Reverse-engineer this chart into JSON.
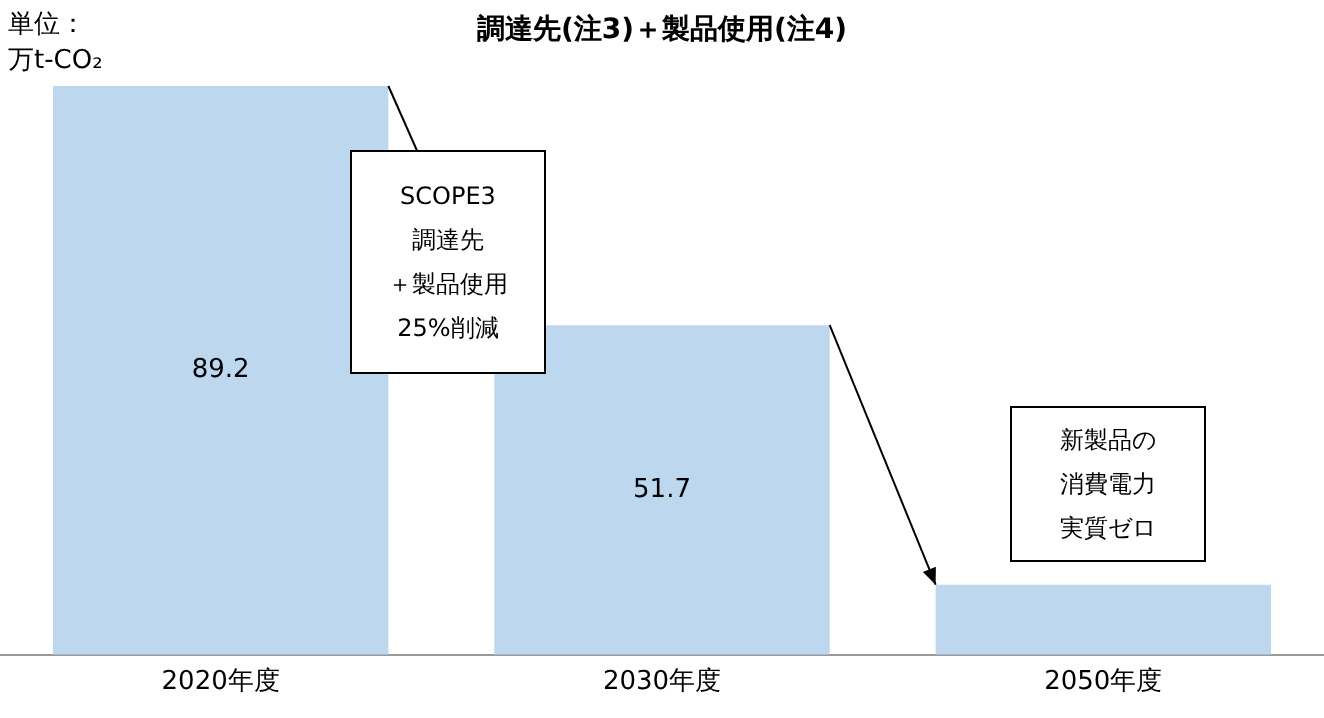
{
  "chart_data": {
    "type": "bar",
    "title": "調達先(注3)＋製品使用(注4)",
    "ylabel": "単位：万t-CO₂",
    "categories": [
      "2020年度",
      "2030年度",
      "2050年度"
    ],
    "values": [
      89.2,
      51.7,
      11
    ],
    "value_labels": [
      "89.2",
      "51.7",
      null
    ],
    "color": "#bdd7ee",
    "annotations": [
      "SCOPE3",
      "調達先",
      "＋製品使用",
      "25%削減",
      "新製品の",
      "消費電力",
      "実質ゼロ"
    ],
    "grid": false,
    "legend": false
  }
}
